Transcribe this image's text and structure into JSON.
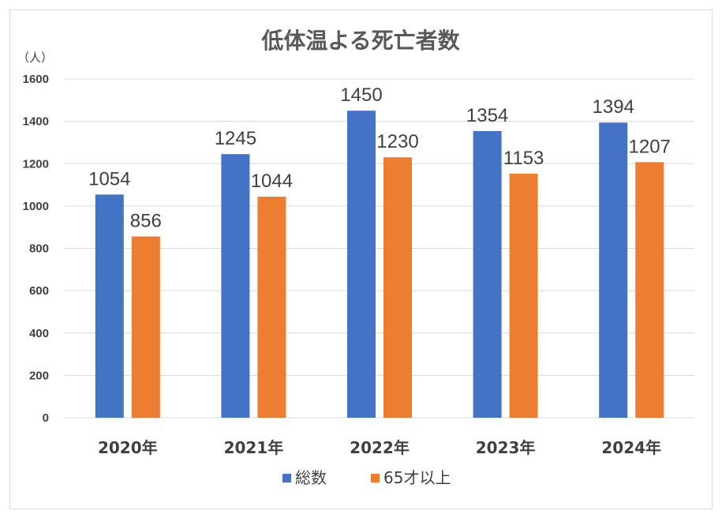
{
  "chart_data": {
    "type": "bar",
    "title": "低体温よる死亡者数",
    "unit_label": "（人）",
    "categories": [
      "2020年",
      "2021年",
      "2022年",
      "2023年",
      "2024年"
    ],
    "series": [
      {
        "name": "総数",
        "color": "#4472C4",
        "values": [
          1054,
          1245,
          1450,
          1354,
          1394
        ]
      },
      {
        "name": "65才以上",
        "color": "#ED7D31",
        "values": [
          856,
          1044,
          1230,
          1153,
          1207
        ]
      }
    ],
    "ylim": [
      0,
      1600
    ],
    "yticks": [
      "0",
      "200",
      "400",
      "600",
      "800",
      "1000",
      "1200",
      "1400",
      "1600"
    ],
    "grid": true,
    "gridline_color": "#d9d9d9",
    "legend_position": "bottom"
  }
}
